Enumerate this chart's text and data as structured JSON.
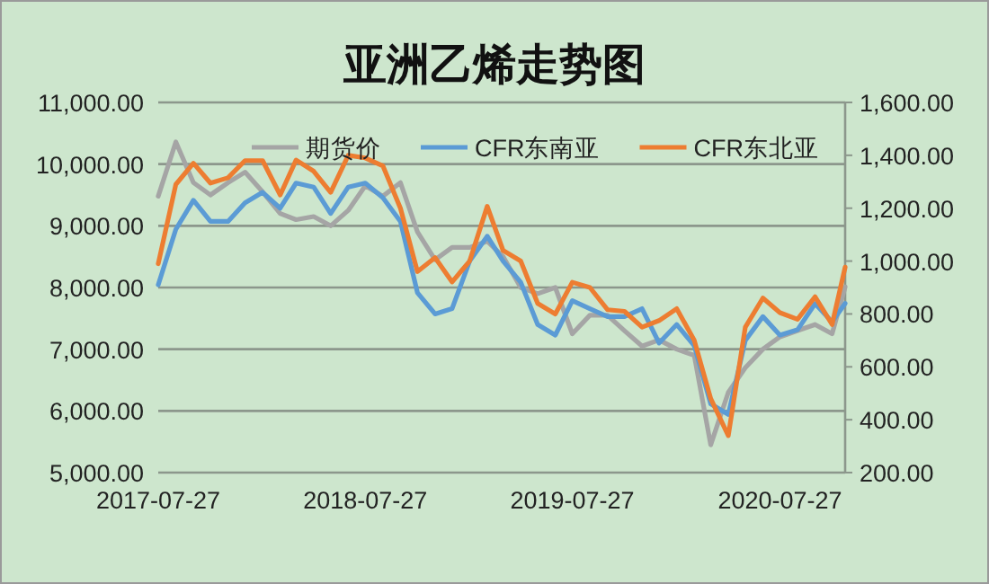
{
  "chart_data": {
    "type": "line",
    "title": "亚洲乙烯走势图",
    "x": [
      "2017-07-27",
      "2017-08-27",
      "2017-09-27",
      "2017-10-27",
      "2017-11-27",
      "2017-12-27",
      "2018-01-27",
      "2018-02-27",
      "2018-03-27",
      "2018-04-27",
      "2018-05-27",
      "2018-06-27",
      "2018-07-27",
      "2018-08-27",
      "2018-09-27",
      "2018-10-27",
      "2018-11-27",
      "2018-12-27",
      "2019-01-27",
      "2019-02-27",
      "2019-03-27",
      "2019-04-27",
      "2019-05-27",
      "2019-06-27",
      "2019-07-27",
      "2019-08-27",
      "2019-09-27",
      "2019-10-27",
      "2019-11-27",
      "2019-12-27",
      "2020-01-27",
      "2020-02-27",
      "2020-03-27",
      "2020-04-27",
      "2020-05-27",
      "2020-06-27",
      "2020-07-27",
      "2020-08-27",
      "2020-09-27",
      "2020-10-27",
      "2020-11-19"
    ],
    "series": [
      {
        "name": "期货价",
        "color": "#a5a5a5",
        "values": [
          9480,
          10360,
          9700,
          9500,
          9700,
          9870,
          9550,
          9200,
          9100,
          9150,
          9000,
          9250,
          9650,
          9480,
          9700,
          8900,
          8450,
          8650,
          8650,
          8750,
          8500,
          8000,
          7900,
          8000,
          7250,
          7550,
          7550,
          7300,
          7050,
          7150,
          7000,
          6900,
          5450,
          6300,
          6700,
          7000,
          7200,
          7300,
          7400,
          7250,
          8010
        ]
      },
      {
        "name": "CFR东南亚",
        "color": "#5b9bd5",
        "axis": "y2",
        "values": [
          910,
          1120,
          1230,
          1150,
          1150,
          1220,
          1260,
          1200,
          1295,
          1280,
          1180,
          1280,
          1295,
          1240,
          1150,
          880,
          800,
          820,
          1000,
          1094,
          1000,
          920,
          760,
          720,
          850,
          820,
          790,
          790,
          820,
          690,
          760,
          680,
          460,
          420,
          700,
          790,
          720,
          740,
          839,
          770,
          840
        ]
      },
      {
        "name": "CFR东北亚",
        "color": "#ed7d31",
        "axis": "y2",
        "values": [
          990,
          1290,
          1370,
          1295,
          1315,
          1380,
          1380,
          1250,
          1382,
          1340,
          1260,
          1400,
          1390,
          1360,
          1200,
          960,
          1013,
          921,
          1000,
          1207,
          1040,
          1000,
          840,
          800,
          920,
          900,
          816,
          810,
          750,
          775,
          820,
          700,
          480,
          340,
          750,
          860,
          805,
          780,
          865,
          760,
          977
        ]
      }
    ],
    "xlim": [
      "2017-07-27",
      "2020-11-19"
    ],
    "xticks": [
      "2017-07-27",
      "2018-07-27",
      "2019-07-27",
      "2020-07-27"
    ],
    "ylim": [
      5000,
      11000
    ],
    "yticks": [
      {
        "value": 5000,
        "label": "5,000.00"
      },
      {
        "value": 6000,
        "label": "6,000.00"
      },
      {
        "value": 7000,
        "label": "7,000.00"
      },
      {
        "value": 8000,
        "label": "8,000.00"
      },
      {
        "value": 9000,
        "label": "9,000.00"
      },
      {
        "value": 10000,
        "label": "10,000.00"
      },
      {
        "value": 11000,
        "label": "11,000.00"
      }
    ],
    "y2lim": [
      200,
      1600
    ],
    "y2ticks": [
      {
        "value": 200,
        "label": "200.00"
      },
      {
        "value": 400,
        "label": "400.00"
      },
      {
        "value": 600,
        "label": "600.00"
      },
      {
        "value": 800,
        "label": "800.00"
      },
      {
        "value": 1000,
        "label": "1,000.00"
      },
      {
        "value": 1200,
        "label": "1,200.00"
      },
      {
        "value": 1400,
        "label": "1,400.00"
      },
      {
        "value": 1600,
        "label": "1,600.00"
      }
    ],
    "grid": "y",
    "legend": "top"
  }
}
